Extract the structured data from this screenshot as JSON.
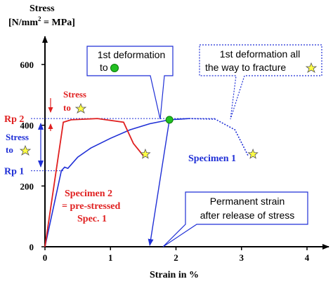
{
  "chart_data": {
    "type": "line",
    "ylabel_line1": "Stress",
    "ylabel_line2_pre": "[N/mm",
    "ylabel_line2_sup": "2",
    "ylabel_line2_post": " = MPa]",
    "xlabel": "Strain in %",
    "xlim": [
      0,
      4
    ],
    "ylim": [
      0,
      700
    ],
    "x_ticks": [
      0,
      1,
      2,
      3,
      4
    ],
    "y_ticks": [
      0,
      200,
      400,
      600
    ],
    "grid": false,
    "series": [
      {
        "name": "Specimen 1",
        "color": "#1f2fd6",
        "x": [
          0,
          0.25,
          0.3,
          0.35,
          0.5,
          0.7,
          1.0,
          1.3,
          1.6,
          1.9,
          2.2
        ],
        "y": [
          0,
          250,
          262,
          258,
          295,
          325,
          357,
          385,
          405,
          418,
          422
        ]
      },
      {
        "name": "Specimen 1 fracture",
        "color": "#1f2fd6",
        "x": [
          1.9,
          2.2,
          2.6,
          2.9,
          3.1
        ],
        "y": [
          418,
          422,
          420,
          385,
          300
        ]
      },
      {
        "name": "Specimen 2 = pre-stressed Spec. 1",
        "color": "#e02020",
        "x": [
          0,
          0.28,
          0.4,
          0.8,
          1.2,
          1.35,
          1.5
        ],
        "y": [
          0,
          410,
          418,
          422,
          410,
          340,
          300
        ]
      },
      {
        "name": "Specimen 1 unloading",
        "color": "#1f2fd6",
        "x": [
          1.9,
          1.6
        ],
        "y": [
          418,
          0
        ]
      }
    ],
    "markers": {
      "green_dot": {
        "x": 1.9,
        "y": 418
      },
      "star_specimen2": {
        "x": 1.5,
        "y": 300
      },
      "star_specimen1": {
        "x": 3.1,
        "y": 300
      }
    },
    "levels": {
      "rp2": {
        "label": "Rp 2",
        "y": 422
      },
      "rp1": {
        "label": "Rp 1",
        "y": 250
      }
    }
  },
  "annotations": {
    "specimen1_label": "Specimen 1",
    "specimen2_line1": "Specimen 2",
    "specimen2_line2": "= pre-stressed",
    "specimen2_line3": "Spec. 1",
    "stress_to_red_line1": "Stress",
    "stress_to_red_line2": "to",
    "stress_to_blue_line1": "Stress",
    "stress_to_blue_line2": "to",
    "box1_line1": "1st deformation",
    "box1_line2": "to",
    "box2_line1": "1st deformation all",
    "box2_line2": "the way to fracture",
    "box3_line1": "Permanent strain",
    "box3_line2": "after release of stress"
  },
  "colors": {
    "blue": "#1f2fd6",
    "red": "#e02020",
    "green": "#22c022",
    "star": "#ffff44",
    "axis": "#000000"
  }
}
